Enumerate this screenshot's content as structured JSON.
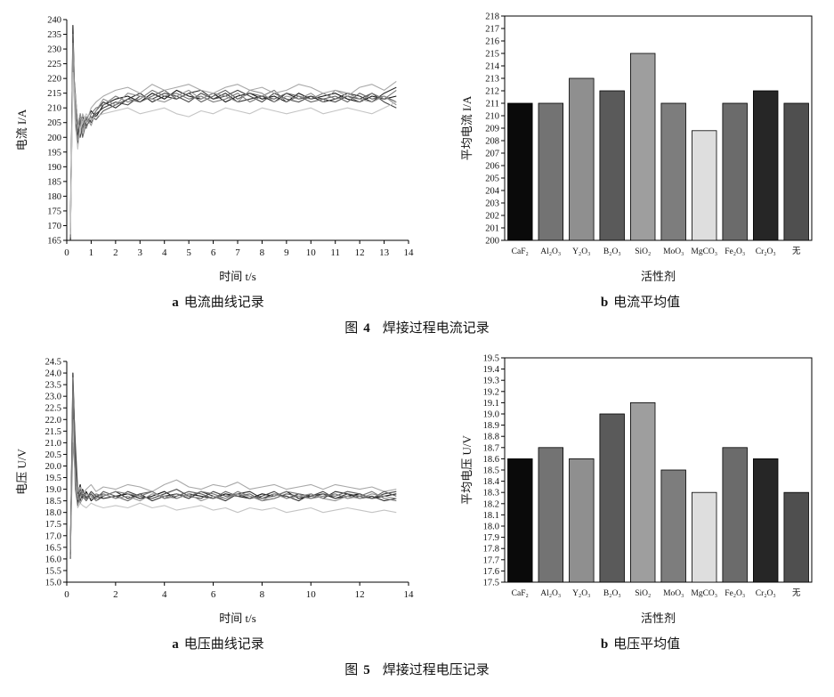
{
  "figure4": {
    "panel_a_caption": {
      "marker": "a",
      "text": "电流曲线记录"
    },
    "panel_b_caption": {
      "marker": "b",
      "text": "电流平均值"
    },
    "figure_caption": {
      "label": "图",
      "number": "4",
      "text": "焊接过程电流记录"
    }
  },
  "figure5": {
    "panel_a_caption": {
      "marker": "a",
      "text": "电压曲线记录"
    },
    "panel_b_caption": {
      "marker": "b",
      "text": "电压平均值"
    },
    "figure_caption": {
      "label": "图",
      "number": "5",
      "text": "焊接过程电压记录"
    }
  },
  "chart_data": [
    {
      "type": "line",
      "title": "",
      "xlabel": "时间 t/s",
      "ylabel": "电流 I/A",
      "xlim": [
        0,
        14
      ],
      "ylim": [
        165,
        240
      ],
      "x_tick_step": 1,
      "y_tick_step": 5,
      "x_decimals": 0,
      "y_decimals": 0,
      "grid": false,
      "legend": "none",
      "x": [
        0.15,
        0.25,
        0.35,
        0.45,
        0.55,
        0.65,
        0.8,
        1,
        1.2,
        1.5,
        2,
        2.5,
        3,
        3.5,
        4,
        4.5,
        5,
        5.5,
        6,
        6.5,
        7,
        7.5,
        8,
        8.5,
        9,
        9.5,
        10,
        10.5,
        11,
        11.5,
        12,
        12.5,
        13,
        13.5
      ],
      "series": [
        {
          "name": "line-1",
          "color": "#141414",
          "values": [
            165,
            238,
            205,
            200,
            208,
            203,
            206,
            209,
            207,
            211,
            213,
            214,
            212,
            215,
            213,
            216,
            214,
            213,
            215,
            212,
            214,
            215,
            213,
            214,
            212,
            215,
            213,
            214,
            215,
            213,
            212,
            214,
            213,
            214
          ]
        },
        {
          "name": "line-2",
          "color": "#2e2e2e",
          "values": [
            170,
            230,
            210,
            198,
            205,
            207,
            204,
            206,
            209,
            212,
            210,
            213,
            215,
            212,
            214,
            213,
            215,
            216,
            213,
            215,
            212,
            213,
            214,
            212,
            215,
            213,
            214,
            212,
            213,
            215,
            214,
            212,
            215,
            217
          ]
        },
        {
          "name": "line-3",
          "color": "#474747",
          "values": [
            168,
            225,
            215,
            205,
            200,
            204,
            207,
            205,
            208,
            210,
            212,
            211,
            214,
            213,
            215,
            214,
            212,
            215,
            213,
            214,
            216,
            214,
            212,
            215,
            213,
            212,
            214,
            213,
            212,
            214,
            213,
            215,
            212,
            210
          ]
        },
        {
          "name": "line-4",
          "color": "#606060",
          "values": [
            172,
            235,
            208,
            202,
            206,
            200,
            205,
            207,
            206,
            209,
            211,
            213,
            212,
            214,
            216,
            213,
            215,
            212,
            214,
            216,
            213,
            215,
            214,
            213,
            215,
            214,
            212,
            213,
            214,
            212,
            215,
            213,
            214,
            212
          ]
        },
        {
          "name": "line-5",
          "color": "#787878",
          "values": [
            166,
            228,
            212,
            199,
            204,
            206,
            203,
            208,
            210,
            211,
            214,
            212,
            213,
            216,
            214,
            215,
            213,
            214,
            212,
            213,
            215,
            212,
            214,
            216,
            212,
            214,
            213,
            215,
            213,
            214,
            212,
            215,
            213,
            216
          ]
        },
        {
          "name": "line-6",
          "color": "#909090",
          "values": [
            169,
            232,
            206,
            203,
            208,
            202,
            207,
            204,
            209,
            213,
            211,
            215,
            214,
            213,
            212,
            214,
            216,
            213,
            215,
            214,
            212,
            216,
            215,
            212,
            214,
            213,
            215,
            212,
            216,
            215,
            213,
            212,
            214,
            211
          ]
        },
        {
          "name": "line-7",
          "color": "#a8a8a8",
          "values": [
            171,
            220,
            214,
            206,
            202,
            208,
            205,
            210,
            212,
            214,
            216,
            217,
            215,
            218,
            216,
            217,
            218,
            216,
            215,
            217,
            218,
            216,
            217,
            215,
            216,
            218,
            217,
            215,
            216,
            214,
            217,
            218,
            216,
            219
          ]
        },
        {
          "name": "line-8",
          "color": "#c4c4c4",
          "values": [
            167,
            222,
            204,
            196,
            203,
            205,
            208,
            206,
            207,
            208,
            209,
            210,
            208,
            209,
            210,
            208,
            207,
            209,
            208,
            210,
            209,
            208,
            210,
            209,
            208,
            209,
            210,
            208,
            209,
            210,
            209,
            208,
            210,
            212
          ]
        }
      ]
    },
    {
      "type": "bar",
      "title": "",
      "xlabel": "活性剂",
      "ylabel": "平均电流 I/A",
      "ylim": [
        200,
        218
      ],
      "y_tick_step": 1,
      "y_decimals": 0,
      "grid": false,
      "legend": "none",
      "categories": [
        "CaF₂",
        "Al₂O₃",
        "Y₂O₃",
        "B₂O₃",
        "SiO₂",
        "MoO₃",
        "MgCO₃",
        "Fe₂O₃",
        "Cr₂O₃",
        "无"
      ],
      "values": [
        211,
        211,
        213,
        212,
        215,
        211,
        208.8,
        211,
        212,
        211
      ],
      "colors": [
        "#0a0a0a",
        "#737373",
        "#8f8f8f",
        "#5a5a5a",
        "#9e9e9e",
        "#7d7d7d",
        "#dedede",
        "#6b6b6b",
        "#262626",
        "#4f4f4f"
      ]
    },
    {
      "type": "line",
      "title": "",
      "xlabel": "时间 t/s",
      "ylabel": "电压 U/V",
      "xlim": [
        0,
        14
      ],
      "ylim": [
        15.0,
        24.5
      ],
      "x_tick_step": 2,
      "y_tick_step": 0.5,
      "x_decimals": 0,
      "y_decimals": 1,
      "grid": false,
      "legend": "none",
      "x": [
        0.15,
        0.25,
        0.35,
        0.45,
        0.55,
        0.65,
        0.8,
        1,
        1.2,
        1.5,
        2,
        2.5,
        3,
        3.5,
        4,
        4.5,
        5,
        5.5,
        6,
        6.5,
        7,
        7.5,
        8,
        8.5,
        9,
        9.5,
        10,
        10.5,
        11,
        11.5,
        12,
        12.5,
        13,
        13.5
      ],
      "series": [
        {
          "name": "line-1",
          "color": "#141414",
          "values": [
            16.2,
            24.0,
            20.5,
            18.8,
            19.2,
            18.6,
            18.9,
            18.5,
            18.7,
            18.6,
            18.7,
            18.8,
            18.6,
            18.7,
            18.9,
            18.6,
            18.8,
            18.7,
            18.6,
            18.8,
            18.7,
            18.6,
            18.8,
            18.7,
            18.9,
            18.6,
            18.7,
            18.8,
            18.6,
            18.7,
            18.8,
            18.6,
            18.7,
            18.8
          ]
        },
        {
          "name": "line-2",
          "color": "#2e2e2e",
          "values": [
            16.5,
            22.5,
            19.5,
            18.4,
            18.8,
            19.0,
            18.6,
            18.8,
            18.5,
            18.7,
            18.9,
            18.6,
            18.8,
            18.5,
            18.7,
            18.8,
            18.6,
            18.9,
            18.7,
            18.5,
            18.8,
            18.9,
            18.6,
            18.8,
            18.7,
            18.5,
            18.8,
            18.6,
            18.9,
            18.8,
            18.6,
            18.7,
            18.5,
            18.6
          ]
        },
        {
          "name": "line-3",
          "color": "#474747",
          "values": [
            16.0,
            23.5,
            21.0,
            19.0,
            18.5,
            18.8,
            18.6,
            18.9,
            18.7,
            18.8,
            18.6,
            18.9,
            18.7,
            18.6,
            18.8,
            19.0,
            18.7,
            18.6,
            18.9,
            18.7,
            18.8,
            18.6,
            18.7,
            18.9,
            18.6,
            18.8,
            18.7,
            18.9,
            18.6,
            18.8,
            18.7,
            18.6,
            18.8,
            18.9
          ]
        },
        {
          "name": "line-4",
          "color": "#a8a8a8",
          "values": [
            16.8,
            21.5,
            19.8,
            18.9,
            19.1,
            18.8,
            19.0,
            19.2,
            18.9,
            19.1,
            19.0,
            19.2,
            19.1,
            18.9,
            19.2,
            19.4,
            19.1,
            19.0,
            19.2,
            19.1,
            19.3,
            19.0,
            19.1,
            19.2,
            19.0,
            19.1,
            19.2,
            19.0,
            19.2,
            19.1,
            19.0,
            19.1,
            18.9,
            19.0
          ]
        },
        {
          "name": "line-5",
          "color": "#c4c4c4",
          "values": [
            16.3,
            22.0,
            19.2,
            18.2,
            18.4,
            18.3,
            18.2,
            18.4,
            18.3,
            18.2,
            18.3,
            18.2,
            18.4,
            18.2,
            18.3,
            18.1,
            18.2,
            18.3,
            18.1,
            18.2,
            18.0,
            18.2,
            18.1,
            18.2,
            18.0,
            18.1,
            18.2,
            18.0,
            18.1,
            18.2,
            18.1,
            18.0,
            18.1,
            18.0
          ]
        },
        {
          "name": "line-6",
          "color": "#606060",
          "values": [
            16.6,
            23.0,
            20.2,
            18.6,
            19.0,
            18.7,
            18.5,
            18.8,
            18.6,
            18.9,
            18.7,
            18.5,
            18.8,
            18.9,
            18.6,
            18.7,
            18.9,
            18.8,
            18.6,
            18.9,
            18.7,
            18.8,
            18.5,
            18.6,
            18.8,
            18.7,
            18.6,
            18.8,
            18.7,
            18.9,
            18.8,
            18.6,
            18.9,
            18.7
          ]
        },
        {
          "name": "line-7",
          "color": "#787878",
          "values": [
            16.1,
            23.8,
            19.0,
            18.3,
            18.7,
            18.9,
            18.7,
            18.6,
            18.8,
            18.7,
            18.9,
            18.8,
            18.7,
            18.9,
            18.6,
            18.8,
            18.7,
            18.9,
            18.8,
            18.6,
            18.9,
            18.7,
            18.6,
            18.7,
            18.9,
            18.8,
            18.6,
            18.7,
            18.8,
            18.6,
            18.7,
            18.9,
            18.6,
            18.5
          ]
        },
        {
          "name": "line-8",
          "color": "#909090",
          "values": [
            16.4,
            21.0,
            19.6,
            18.7,
            18.4,
            18.6,
            18.8,
            18.7,
            18.5,
            18.8,
            18.6,
            18.7,
            18.5,
            18.8,
            18.7,
            18.6,
            18.8,
            18.5,
            18.7,
            18.6,
            18.8,
            18.7,
            18.5,
            18.8,
            18.6,
            18.7,
            18.8,
            18.6,
            18.5,
            18.7,
            18.6,
            18.8,
            18.7,
            18.6
          ]
        }
      ]
    },
    {
      "type": "bar",
      "title": "",
      "xlabel": "活性剂",
      "ylabel": "平均电压 U/V",
      "ylim": [
        17.5,
        19.5
      ],
      "y_tick_step": 0.1,
      "y_decimals": 1,
      "grid": false,
      "legend": "none",
      "categories": [
        "CaF₂",
        "Al₂O₃",
        "Y₂O₃",
        "B₂O₃",
        "SiO₂",
        "MoO₃",
        "MgCO₃",
        "Fe₂O₃",
        "Cr₂O₃",
        "无"
      ],
      "values": [
        18.6,
        18.7,
        18.6,
        19.0,
        19.1,
        18.5,
        18.3,
        18.7,
        18.6,
        18.3
      ],
      "colors": [
        "#0a0a0a",
        "#737373",
        "#8f8f8f",
        "#5a5a5a",
        "#9e9e9e",
        "#7d7d7d",
        "#dedede",
        "#6b6b6b",
        "#262626",
        "#4f4f4f"
      ]
    }
  ]
}
